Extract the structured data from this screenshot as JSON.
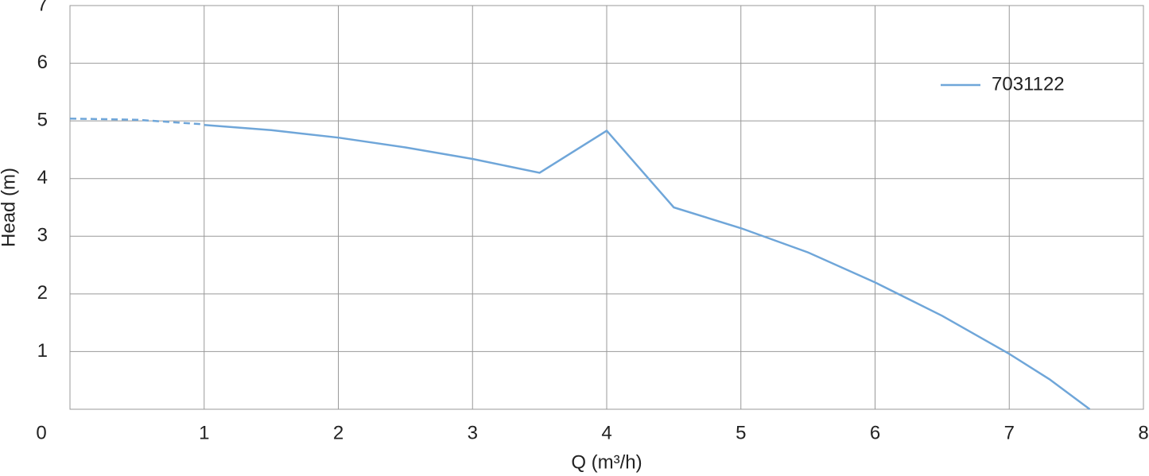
{
  "chart_data": {
    "type": "line",
    "xlabel": "Q (m³/h)",
    "ylabel": "Head (m)",
    "xlim": [
      0,
      8
    ],
    "xticks": [
      0,
      1,
      2,
      3,
      4,
      5,
      6,
      7,
      8
    ],
    "ylim": [
      0,
      7
    ],
    "yticks": [
      1,
      2,
      3,
      4,
      5,
      6,
      7
    ],
    "grid": true,
    "legend": "upper right",
    "series": [
      {
        "name": "7031122",
        "color": "#6fa6d9",
        "x": [
          1,
          1.5,
          2,
          2.5,
          3,
          3.5,
          4,
          4.5,
          5,
          5.5,
          6,
          6.5,
          7,
          7.3,
          7.6
        ],
        "values": [
          4.93,
          4.84,
          4.71,
          4.54,
          4.34,
          4.1,
          4.83,
          3.5,
          3.14,
          2.72,
          2.2,
          1.62,
          0.96,
          0.52,
          0
        ]
      },
      {
        "color": "#6fa6d9",
        "dashed": true,
        "x": [
          0,
          0.5,
          1
        ],
        "values": [
          5.04,
          5.02,
          4.94
        ]
      }
    ]
  }
}
